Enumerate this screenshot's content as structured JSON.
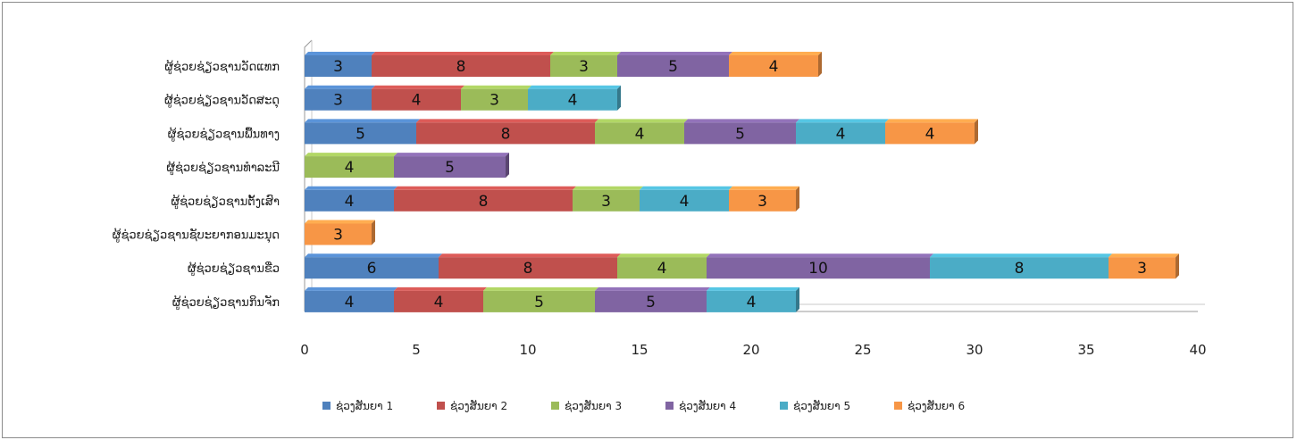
{
  "chart_data": {
    "type": "bar",
    "orientation": "horizontal",
    "stacked": true,
    "categories": [
      "ຜູ້ຊ່ວຍຊ່ຽວຊານກິນຈັກ",
      "ຜູ້ຊ່ວຍຊ່ຽວຊານຂີ່ວ",
      "ຜູ້ຊ່ວຍຊ່ຽວຊານຊັບະຍາກອນມະນຸດ",
      "ຜູ້ຊ່ວຍຊ່ຽວຊານຕັ້ງເສົາ",
      "ຜູ້ຊ່ວຍຊ່ຽວຊານທຳລະນີ",
      "ຜູ້ຊ່ວຍຊ່ຽວຊານພື້ນທາງ",
      "ຜູ້ຊ່ວຍຊ່ຽວຊານວັດສະດຸ",
      "ຜູ້ຊ່ວຍຊ່ຽວຊານວັດແທກ"
    ],
    "series": [
      {
        "name": "ຊ່ວງສັນຍາ 1",
        "color": "#4f81bd",
        "values": [
          4,
          6,
          0,
          4,
          0,
          5,
          3,
          3
        ]
      },
      {
        "name": "ຊ່ວງສັນຍາ 2",
        "color": "#c0504d",
        "values": [
          4,
          8,
          0,
          8,
          0,
          8,
          4,
          8
        ]
      },
      {
        "name": "ຊ່ວງສັນຍາ 3",
        "color": "#9bbb59",
        "values": [
          5,
          4,
          0,
          3,
          4,
          4,
          3,
          3
        ]
      },
      {
        "name": "ຊ່ວງສັນຍາ 4",
        "color": "#8064a2",
        "values": [
          5,
          10,
          0,
          0,
          5,
          5,
          0,
          5
        ]
      },
      {
        "name": "ຊ່ວງສັນຍາ 5",
        "color": "#4bacc6",
        "values": [
          4,
          8,
          0,
          4,
          0,
          4,
          4,
          0
        ]
      },
      {
        "name": "ຊ່ວງສັນຍາ 6",
        "color": "#f79646",
        "values": [
          0,
          3,
          3,
          3,
          0,
          4,
          0,
          4
        ]
      }
    ],
    "xlim": [
      0,
      40
    ],
    "xticks": [
      0,
      5,
      10,
      15,
      20,
      25,
      30,
      35,
      40
    ],
    "title": "",
    "xlabel": "",
    "ylabel": "",
    "grid": false,
    "legend_position": "bottom"
  }
}
